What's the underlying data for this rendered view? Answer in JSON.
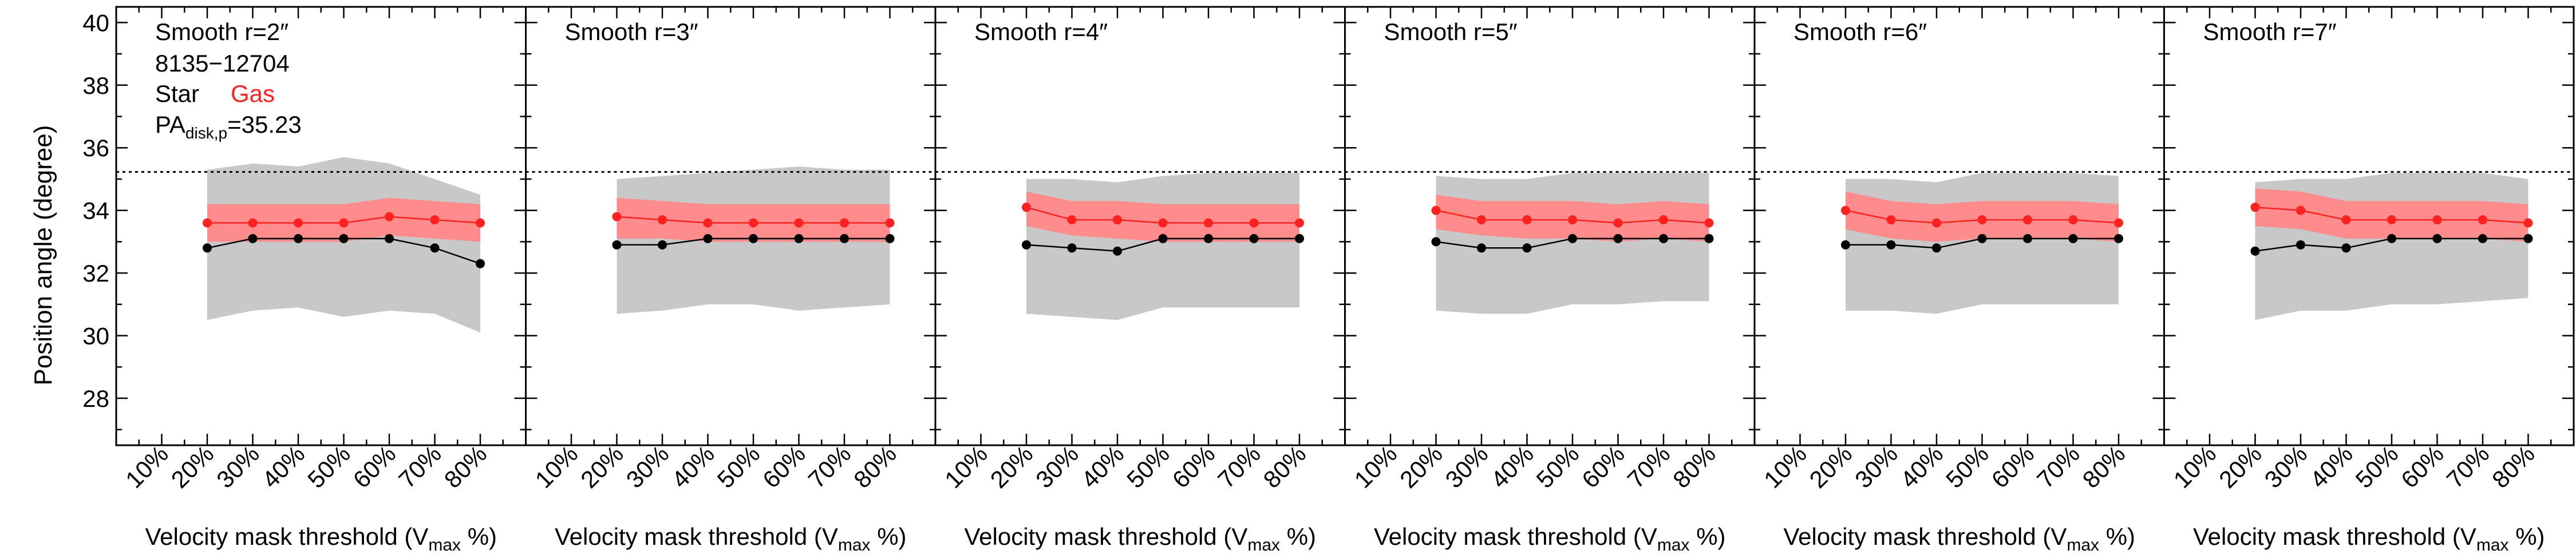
{
  "figure": {
    "ylabel": "Position angle (degree)"
  },
  "chart_data": [
    {
      "type": "line",
      "title": "Smooth r=2″",
      "annotations": {
        "galaxy_id": "8135−12704",
        "star_label": "Star",
        "gas_label": "Gas",
        "pa_label": "PA",
        "pa_subscript": "disk,p",
        "pa_value": "=35.23"
      },
      "xlabel": "Velocity mask threshold (V",
      "xlabel_sub": "max",
      "xlabel_end": " %)",
      "ylabel": "Position angle (degree)",
      "categories": [
        "10%",
        "20%",
        "30%",
        "40%",
        "50%",
        "60%",
        "70%",
        "80%"
      ],
      "x": [
        10,
        20,
        30,
        40,
        50,
        60,
        70,
        80
      ],
      "xlim": [
        0,
        90
      ],
      "ylim": [
        26.5,
        40.5
      ],
      "yticks": [
        28,
        30,
        32,
        34,
        36,
        38,
        40
      ],
      "reference_line": 35.23,
      "colors": {
        "star": "#000000",
        "gas": "#ff2020",
        "gas_band": "#ff8c8c",
        "star_band": "#c8c8c8"
      },
      "series": [
        {
          "name": "Star",
          "x": [
            20,
            30,
            40,
            50,
            60,
            70,
            80
          ],
          "values": [
            32.8,
            33.1,
            33.1,
            33.1,
            33.1,
            32.8,
            32.3
          ],
          "band_low": [
            30.5,
            30.8,
            30.9,
            30.6,
            30.8,
            30.7,
            30.1
          ],
          "band_high": [
            35.3,
            35.5,
            35.4,
            35.7,
            35.5,
            35.0,
            34.5
          ]
        },
        {
          "name": "Gas",
          "x": [
            20,
            30,
            40,
            50,
            60,
            70,
            80
          ],
          "values": [
            33.6,
            33.6,
            33.6,
            33.6,
            33.8,
            33.7,
            33.6
          ],
          "band_low": [
            33.0,
            33.0,
            33.0,
            33.0,
            33.2,
            33.1,
            33.0
          ],
          "band_high": [
            34.2,
            34.2,
            34.2,
            34.2,
            34.4,
            34.3,
            34.2
          ]
        }
      ]
    },
    {
      "type": "line",
      "title": "Smooth r=3″",
      "xlabel": "Velocity mask threshold (V",
      "xlabel_sub": "max",
      "xlabel_end": " %)",
      "categories": [
        "10%",
        "20%",
        "30%",
        "40%",
        "50%",
        "60%",
        "70%",
        "80%"
      ],
      "x": [
        10,
        20,
        30,
        40,
        50,
        60,
        70,
        80
      ],
      "xlim": [
        0,
        90
      ],
      "ylim": [
        26.5,
        40.5
      ],
      "reference_line": 35.23,
      "series": [
        {
          "name": "Star",
          "x": [
            20,
            30,
            40,
            50,
            60,
            70,
            80
          ],
          "values": [
            32.9,
            32.9,
            33.1,
            33.1,
            33.1,
            33.1,
            33.1
          ],
          "band_low": [
            30.7,
            30.8,
            31.0,
            31.0,
            30.8,
            30.9,
            31.0
          ],
          "band_high": [
            35.0,
            35.1,
            35.2,
            35.3,
            35.4,
            35.3,
            35.3
          ]
        },
        {
          "name": "Gas",
          "x": [
            20,
            30,
            40,
            50,
            60,
            70,
            80
          ],
          "values": [
            33.8,
            33.7,
            33.6,
            33.6,
            33.6,
            33.6,
            33.6
          ],
          "band_low": [
            33.1,
            33.1,
            33.0,
            33.0,
            33.0,
            33.0,
            33.0
          ],
          "band_high": [
            34.4,
            34.3,
            34.2,
            34.2,
            34.2,
            34.2,
            34.2
          ]
        }
      ]
    },
    {
      "type": "line",
      "title": "Smooth r=4″",
      "xlabel": "Velocity mask threshold (V",
      "xlabel_sub": "max",
      "xlabel_end": " %)",
      "categories": [
        "10%",
        "20%",
        "30%",
        "40%",
        "50%",
        "60%",
        "70%",
        "80%"
      ],
      "x": [
        10,
        20,
        30,
        40,
        50,
        60,
        70,
        80
      ],
      "xlim": [
        0,
        90
      ],
      "ylim": [
        26.5,
        40.5
      ],
      "reference_line": 35.23,
      "series": [
        {
          "name": "Star",
          "x": [
            20,
            30,
            40,
            50,
            60,
            70,
            80
          ],
          "values": [
            32.9,
            32.8,
            32.7,
            33.1,
            33.1,
            33.1,
            33.1
          ],
          "band_low": [
            30.7,
            30.6,
            30.5,
            30.9,
            30.9,
            30.9,
            30.9
          ],
          "band_high": [
            35.0,
            35.0,
            34.9,
            35.1,
            35.2,
            35.2,
            35.2
          ]
        },
        {
          "name": "Gas",
          "x": [
            20,
            30,
            40,
            50,
            60,
            70,
            80
          ],
          "values": [
            34.1,
            33.7,
            33.7,
            33.6,
            33.6,
            33.6,
            33.6
          ],
          "band_low": [
            33.5,
            33.2,
            33.1,
            33.0,
            33.0,
            33.0,
            33.0
          ],
          "band_high": [
            34.6,
            34.3,
            34.3,
            34.2,
            34.2,
            34.2,
            34.2
          ]
        }
      ]
    },
    {
      "type": "line",
      "title": "Smooth r=5″",
      "xlabel": "Velocity mask threshold (V",
      "xlabel_sub": "max",
      "xlabel_end": " %)",
      "categories": [
        "10%",
        "20%",
        "30%",
        "40%",
        "50%",
        "60%",
        "70%",
        "80%"
      ],
      "x": [
        10,
        20,
        30,
        40,
        50,
        60,
        70,
        80
      ],
      "xlim": [
        0,
        90
      ],
      "ylim": [
        26.5,
        40.5
      ],
      "reference_line": 35.23,
      "series": [
        {
          "name": "Star",
          "x": [
            20,
            30,
            40,
            50,
            60,
            70,
            80
          ],
          "values": [
            33.0,
            32.8,
            32.8,
            33.1,
            33.1,
            33.1,
            33.1
          ],
          "band_low": [
            30.8,
            30.7,
            30.7,
            31.0,
            31.0,
            31.1,
            31.1
          ],
          "band_high": [
            35.1,
            35.0,
            35.0,
            35.2,
            35.2,
            35.2,
            35.2
          ]
        },
        {
          "name": "Gas",
          "x": [
            20,
            30,
            40,
            50,
            60,
            70,
            80
          ],
          "values": [
            34.0,
            33.7,
            33.7,
            33.7,
            33.6,
            33.7,
            33.6
          ],
          "band_low": [
            33.4,
            33.2,
            33.1,
            33.1,
            33.0,
            33.1,
            33.0
          ],
          "band_high": [
            34.5,
            34.3,
            34.3,
            34.3,
            34.2,
            34.3,
            34.2
          ]
        }
      ]
    },
    {
      "type": "line",
      "title": "Smooth r=6″",
      "xlabel": "Velocity mask threshold (V",
      "xlabel_sub": "max",
      "xlabel_end": " %)",
      "categories": [
        "10%",
        "20%",
        "30%",
        "40%",
        "50%",
        "60%",
        "70%",
        "80%"
      ],
      "x": [
        10,
        20,
        30,
        40,
        50,
        60,
        70,
        80
      ],
      "xlim": [
        0,
        90
      ],
      "ylim": [
        26.5,
        40.5
      ],
      "reference_line": 35.23,
      "series": [
        {
          "name": "Star",
          "x": [
            20,
            30,
            40,
            50,
            60,
            70,
            80
          ],
          "values": [
            32.9,
            32.9,
            32.8,
            33.1,
            33.1,
            33.1,
            33.1
          ],
          "band_low": [
            30.8,
            30.8,
            30.7,
            31.0,
            31.0,
            31.0,
            31.0
          ],
          "band_high": [
            35.0,
            35.0,
            34.9,
            35.2,
            35.2,
            35.2,
            35.1
          ]
        },
        {
          "name": "Gas",
          "x": [
            20,
            30,
            40,
            50,
            60,
            70,
            80
          ],
          "values": [
            34.0,
            33.7,
            33.6,
            33.7,
            33.7,
            33.7,
            33.6
          ],
          "band_low": [
            33.4,
            33.1,
            33.0,
            33.1,
            33.1,
            33.1,
            33.0
          ],
          "band_high": [
            34.6,
            34.3,
            34.2,
            34.3,
            34.3,
            34.3,
            34.2
          ]
        }
      ]
    },
    {
      "type": "line",
      "title": "Smooth r=7″",
      "xlabel": "Velocity mask threshold (V",
      "xlabel_sub": "max",
      "xlabel_end": " %)",
      "categories": [
        "10%",
        "20%",
        "30%",
        "40%",
        "50%",
        "60%",
        "70%",
        "80%"
      ],
      "x": [
        10,
        20,
        30,
        40,
        50,
        60,
        70,
        80
      ],
      "xlim": [
        0,
        90
      ],
      "ylim": [
        26.5,
        40.5
      ],
      "reference_line": 35.23,
      "series": [
        {
          "name": "Star",
          "x": [
            20,
            30,
            40,
            50,
            60,
            70,
            80
          ],
          "values": [
            32.7,
            32.9,
            32.8,
            33.1,
            33.1,
            33.1,
            33.1
          ],
          "band_low": [
            30.5,
            30.8,
            30.8,
            31.0,
            31.0,
            31.1,
            31.2
          ],
          "band_high": [
            34.9,
            35.0,
            35.0,
            35.2,
            35.2,
            35.2,
            35.0
          ]
        },
        {
          "name": "Gas",
          "x": [
            20,
            30,
            40,
            50,
            60,
            70,
            80
          ],
          "values": [
            34.1,
            34.0,
            33.7,
            33.7,
            33.7,
            33.7,
            33.6
          ],
          "band_low": [
            33.5,
            33.4,
            33.1,
            33.1,
            33.1,
            33.1,
            33.0
          ],
          "band_high": [
            34.7,
            34.6,
            34.3,
            34.3,
            34.3,
            34.3,
            34.2
          ]
        }
      ]
    }
  ]
}
